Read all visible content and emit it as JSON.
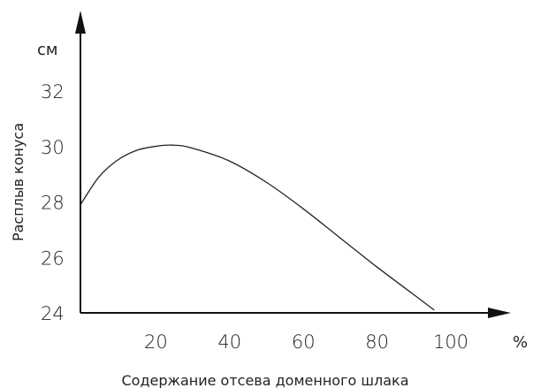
{
  "chart_data": {
    "type": "line",
    "title": "",
    "xlabel": "Содержание отсева доменного шлака",
    "ylabel": "Расплыв конуса",
    "x_unit": "%",
    "y_unit": "см",
    "xlim": [
      0,
      100
    ],
    "ylim": [
      24,
      32
    ],
    "x_ticks": [
      "20",
      "40",
      "60",
      "80",
      "100"
    ],
    "y_ticks": [
      "24",
      "26",
      "28",
      "30",
      "32"
    ],
    "grid": false,
    "legend": "none",
    "line_color": "#222222",
    "series": [
      {
        "x": [
          0,
          5,
          10,
          15,
          20,
          25,
          30,
          40,
          50,
          60,
          70,
          80,
          90,
          96
        ],
        "y": [
          27.9,
          28.9,
          29.5,
          29.85,
          30.0,
          30.05,
          29.95,
          29.5,
          28.75,
          27.8,
          26.75,
          25.7,
          24.7,
          24.1
        ]
      }
    ]
  }
}
